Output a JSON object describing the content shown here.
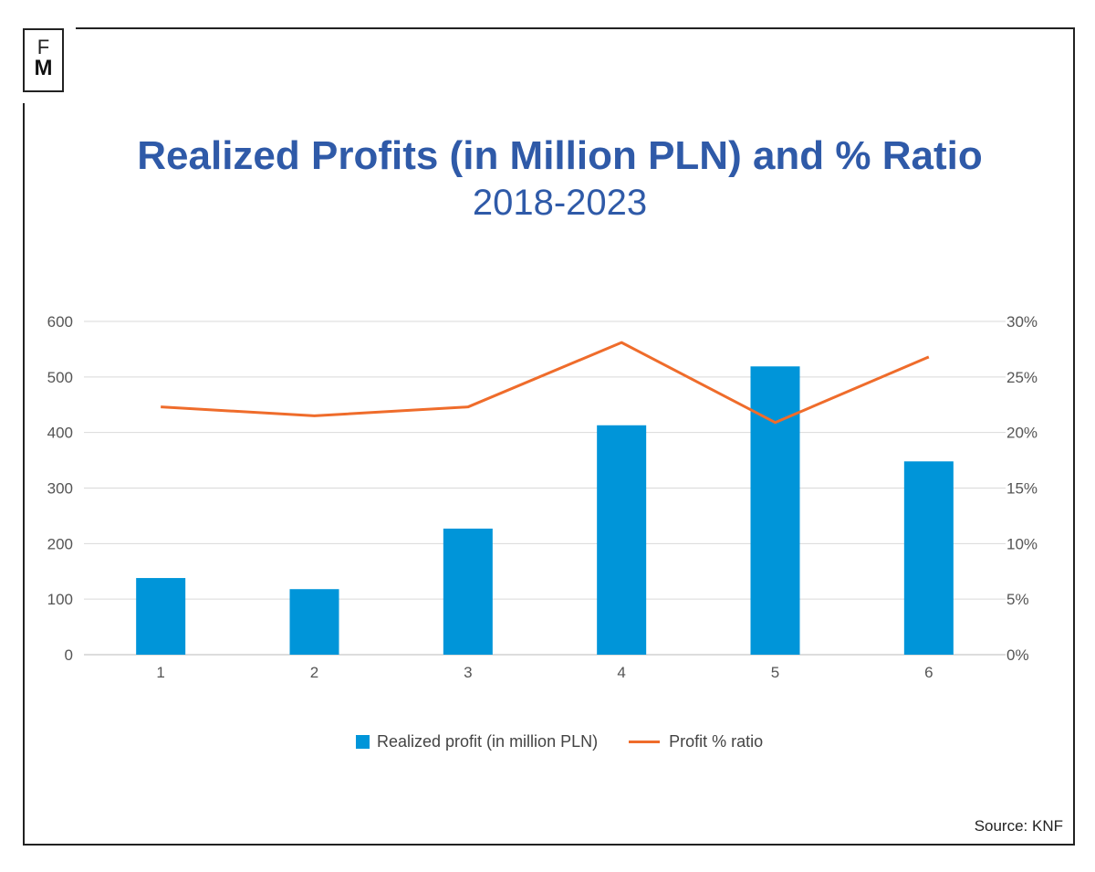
{
  "logo": {
    "line1": "F",
    "line2": "M"
  },
  "title": "Realized Profits (in Million PLN) and % Ratio",
  "subtitle": "2018-2023",
  "source": "Source: KNF",
  "chart_data": {
    "type": "bar+line",
    "categories": [
      "1",
      "2",
      "3",
      "4",
      "5",
      "6"
    ],
    "series": [
      {
        "name": "Realized profit (in million PLN)",
        "type": "bar",
        "axis": "left",
        "color": "#0095d9",
        "values": [
          138,
          118,
          227,
          413,
          519,
          348
        ]
      },
      {
        "name": "Profit % ratio",
        "type": "line",
        "axis": "right",
        "color": "#ef6c2b",
        "values": [
          22.3,
          21.5,
          22.3,
          28.1,
          20.9,
          26.8
        ]
      }
    ],
    "y_left": {
      "ylim": [
        0,
        600
      ],
      "ticks": [
        "0",
        "100",
        "200",
        "300",
        "400",
        "500",
        "600"
      ]
    },
    "y_right": {
      "ylim": [
        0,
        30
      ],
      "ticks": [
        "0%",
        "5%",
        "10%",
        "15%",
        "20%",
        "25%",
        "30%"
      ]
    },
    "grid": true,
    "legend": "bottom"
  }
}
